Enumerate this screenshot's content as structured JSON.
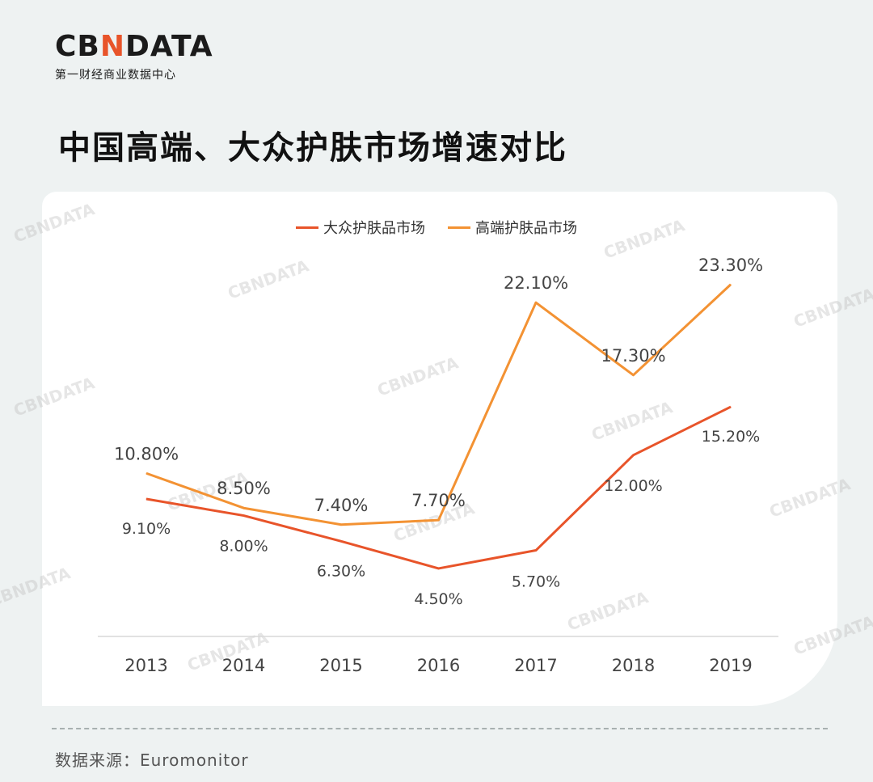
{
  "header": {
    "logo_prefix": "CB",
    "logo_accent": "N",
    "logo_suffix": "DATA",
    "logo_subtitle": "第一财经商业数据中心",
    "watermark": "CBNDATA"
  },
  "page_title": "中国高端、大众护肤市场增速对比",
  "footer": {
    "source": "数据来源：Euromonitor"
  },
  "colors": {
    "mass": "#e8542a",
    "premium": "#f39233",
    "accent": "#e8542a"
  },
  "chart_data": {
    "type": "line",
    "title": "中国高端、大众护肤市场增速对比",
    "categories": [
      "2013",
      "2014",
      "2015",
      "2016",
      "2017",
      "2018",
      "2019"
    ],
    "ylim": [
      0,
      25
    ],
    "xlabel": "",
    "ylabel": "",
    "legend_position": "top-center",
    "grid": false,
    "series": [
      {
        "name": "大众护肤品市场",
        "color": "#e8542a",
        "values": [
          9.1,
          8.0,
          6.3,
          4.5,
          5.7,
          12.0,
          15.2
        ],
        "labels": [
          "9.10%",
          "8.00%",
          "6.30%",
          "4.50%",
          "5.70%",
          "12.00%",
          "15.20%"
        ]
      },
      {
        "name": "高端护肤品市场",
        "color": "#f39233",
        "values": [
          10.8,
          8.5,
          7.4,
          7.7,
          22.1,
          17.3,
          23.3
        ],
        "labels": [
          "10.80%",
          "8.50%",
          "7.40%",
          "7.70%",
          "22.10%",
          "17.30%",
          "23.30%"
        ]
      }
    ]
  }
}
